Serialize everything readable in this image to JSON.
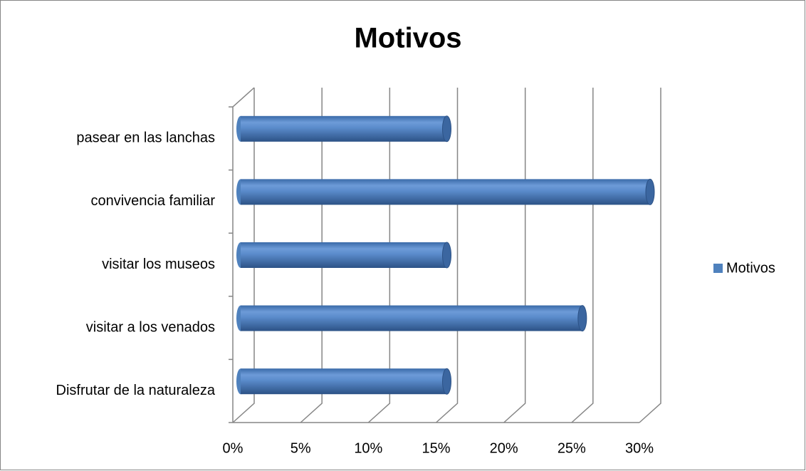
{
  "chart_data": {
    "type": "bar3d_horizontal",
    "title": "Motivos",
    "categories": [
      "Disfrutar de la naturaleza",
      "visitar a los venados",
      "visitar los museos",
      "convivencia familiar",
      "pasear en las lanchas"
    ],
    "series": [
      {
        "name": "Motivos",
        "color": "#4f81bd",
        "values": [
          15,
          25,
          15,
          30,
          15
        ]
      }
    ],
    "xlim": [
      0,
      30
    ],
    "xticks": [
      {
        "value": 0,
        "label": "0%"
      },
      {
        "value": 5,
        "label": "5%"
      },
      {
        "value": 10,
        "label": "10%"
      },
      {
        "value": 15,
        "label": "15%"
      },
      {
        "value": 20,
        "label": "20%"
      },
      {
        "value": 25,
        "label": "25%"
      },
      {
        "value": 30,
        "label": "30%"
      }
    ],
    "grid": true,
    "legend": "right"
  }
}
